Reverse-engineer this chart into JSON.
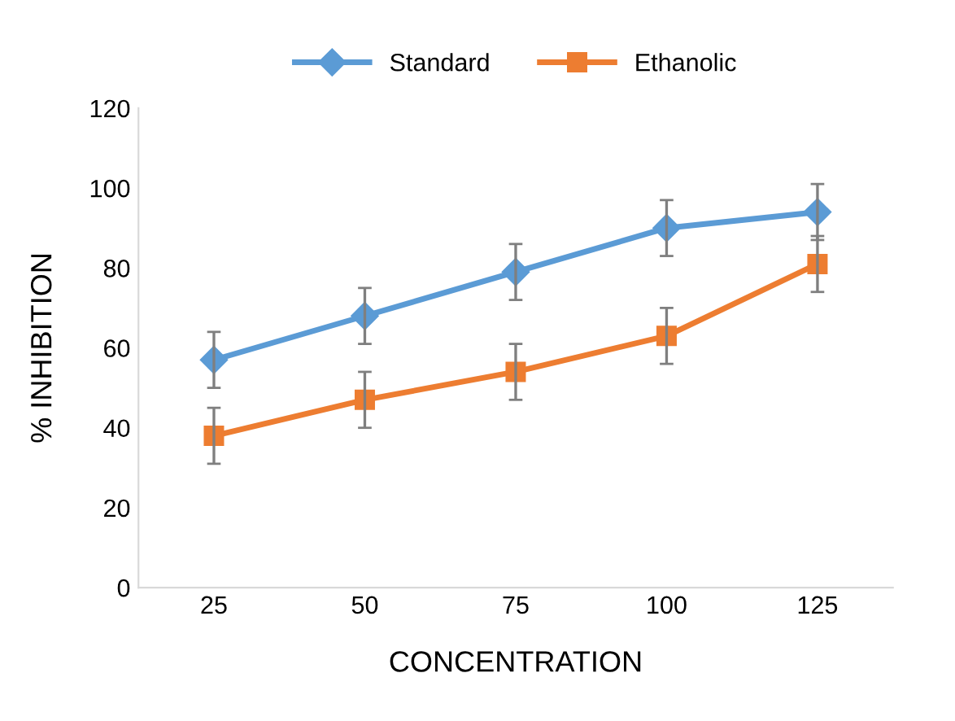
{
  "chart_data": {
    "type": "line",
    "xlabel": "CONCENTRATION",
    "ylabel": "% INHIBITION",
    "categories": [
      "25",
      "50",
      "75",
      "100",
      "125"
    ],
    "series": [
      {
        "name": "Standard",
        "color": "#5b9bd5",
        "marker": "diamond",
        "values": [
          57,
          68,
          79,
          90,
          94
        ],
        "errors": [
          7,
          7,
          7,
          7,
          7
        ]
      },
      {
        "name": "Ethanolic",
        "color": "#ed7d31",
        "marker": "square",
        "values": [
          38,
          47,
          54,
          63,
          81
        ],
        "errors": [
          7,
          7,
          7,
          7,
          7
        ]
      }
    ],
    "ylim": [
      0,
      120
    ],
    "yticks": [
      0,
      20,
      40,
      60,
      80,
      100,
      120
    ],
    "grid": false,
    "legend": "top",
    "line_style": "solid"
  }
}
